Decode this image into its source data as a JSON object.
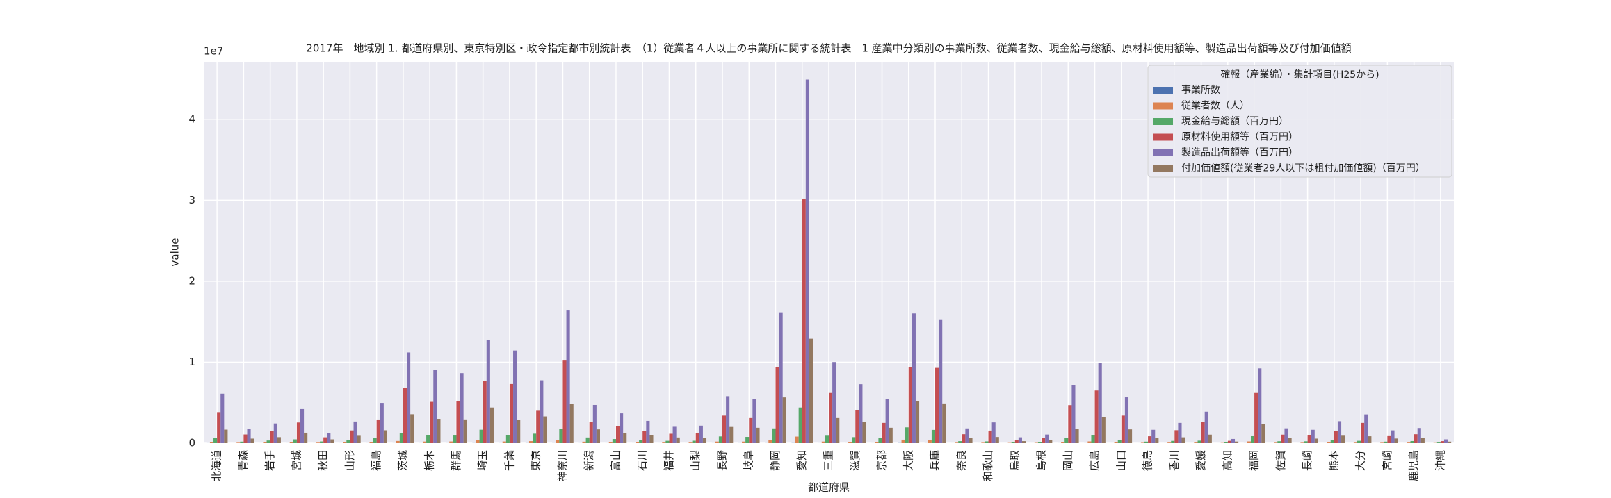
{
  "chart_data": {
    "type": "bar",
    "title": "2017年　地域別 1. 都道府県別、東京特別区・政令指定都市別統計表　（1）従業者４人以上の事業所に関する統計表　1 産業中分類別の事業所数、従業者数、現金給与総額、原材料使用額等、製造品出荷額等及び付加価値額",
    "x_label": "都道府県",
    "y_label": "value",
    "y_offset_label": "1e7",
    "legend_title": "確報（産業編）・集計項目(H25から)",
    "legend_position": "upper right",
    "grid": true,
    "categories": [
      "北海道",
      "青森",
      "岩手",
      "宮城",
      "秋田",
      "山形",
      "福島",
      "茨城",
      "栃木",
      "群馬",
      "埼玉",
      "千葉",
      "東京",
      "神奈川",
      "新潟",
      "富山",
      "石川",
      "福井",
      "山梨",
      "長野",
      "岐阜",
      "静岡",
      "愛知",
      "三重",
      "滋賀",
      "京都",
      "大阪",
      "兵庫",
      "奈良",
      "和歌山",
      "鳥取",
      "島根",
      "岡山",
      "広島",
      "山口",
      "徳島",
      "香川",
      "愛媛",
      "高知",
      "福岡",
      "佐賀",
      "長崎",
      "熊本",
      "大分",
      "宮崎",
      "鹿児島",
      "沖縄"
    ],
    "series": [
      {
        "name": "事業所数",
        "color": "#4c72b0",
        "values": [
          5300,
          1400,
          2100,
          2700,
          1800,
          2600,
          3600,
          5200,
          4200,
          4900,
          11100,
          4800,
          10800,
          7800,
          5200,
          2600,
          2700,
          2000,
          1700,
          5000,
          5600,
          8800,
          15700,
          3200,
          2600,
          4200,
          15700,
          7200,
          1800,
          1700,
          800,
          1100,
          3200,
          4800,
          1800,
          1100,
          1900,
          2000,
          1000,
          5000,
          1400,
          1500,
          2000,
          1400,
          1400,
          2100,
          1100
        ]
      },
      {
        "name": "従業者数（人）",
        "color": "#dd8452",
        "values": [
          168000,
          56000,
          88000,
          116000,
          62000,
          101000,
          158000,
          268000,
          200000,
          210000,
          393000,
          208000,
          253000,
          357000,
          185000,
          123000,
          97000,
          73000,
          71000,
          198000,
          196000,
          407000,
          810000,
          198000,
          160000,
          141000,
          433000,
          360000,
          60000,
          54000,
          31000,
          41000,
          147000,
          216000,
          93000,
          46000,
          70000,
          77000,
          25000,
          216000,
          61000,
          56000,
          92000,
          67000,
          55000,
          72000,
          24000
        ]
      },
      {
        "name": "現金給与総額（百万円）",
        "color": "#55a868",
        "values": [
          640000,
          190000,
          330000,
          470000,
          210000,
          380000,
          640000,
          1260000,
          960000,
          940000,
          1660000,
          960000,
          1170000,
          1720000,
          700000,
          510000,
          380000,
          290000,
          300000,
          830000,
          770000,
          1820000,
          4400000,
          920000,
          740000,
          610000,
          1950000,
          1640000,
          250000,
          220000,
          110000,
          150000,
          620000,
          960000,
          420000,
          190000,
          280000,
          310000,
          90000,
          860000,
          240000,
          230000,
          360000,
          290000,
          190000,
          260000,
          80000
        ]
      },
      {
        "name": "原材料使用額等（百万円）",
        "color": "#c44e52",
        "values": [
          3830000,
          1070000,
          1500000,
          2550000,
          720000,
          1570000,
          2920000,
          6800000,
          5100000,
          5200000,
          7700000,
          7300000,
          4000000,
          10200000,
          2600000,
          2100000,
          1500000,
          1160000,
          1280000,
          3400000,
          3100000,
          9400000,
          30200000,
          6200000,
          4100000,
          2500000,
          9400000,
          9300000,
          1100000,
          1550000,
          400000,
          620000,
          4700000,
          6500000,
          3400000,
          850000,
          1600000,
          2600000,
          290000,
          6200000,
          1050000,
          950000,
          1500000,
          2500000,
          870000,
          1100000,
          250000
        ]
      },
      {
        "name": "製造品出荷額等（百万円）",
        "color": "#8172b3",
        "values": [
          6110000,
          1750000,
          2430000,
          4210000,
          1280000,
          2670000,
          4970000,
          11200000,
          9030000,
          8650000,
          12710000,
          11440000,
          7760000,
          16380000,
          4720000,
          3680000,
          2750000,
          2020000,
          2160000,
          5800000,
          5430000,
          16160000,
          44910000,
          10020000,
          7280000,
          5430000,
          16020000,
          15210000,
          1820000,
          2560000,
          720000,
          1060000,
          7130000,
          9930000,
          5660000,
          1650000,
          2500000,
          3880000,
          520000,
          9240000,
          1830000,
          1650000,
          2710000,
          3550000,
          1580000,
          1870000,
          470000
        ]
      },
      {
        "name": "付加価値額(従業者29人以下は粗付加価値額)（百万円）",
        "color": "#937860",
        "values": [
          1670000,
          560000,
          740000,
          1290000,
          470000,
          910000,
          1590000,
          3570000,
          3000000,
          2930000,
          4400000,
          2900000,
          3300000,
          4870000,
          1700000,
          1230000,
          990000,
          700000,
          670000,
          2000000,
          1900000,
          5650000,
          12900000,
          3100000,
          2650000,
          1900000,
          5150000,
          4900000,
          620000,
          760000,
          250000,
          390000,
          1800000,
          3200000,
          1700000,
          680000,
          720000,
          1050000,
          200000,
          2400000,
          620000,
          560000,
          920000,
          850000,
          570000,
          620000,
          190000
        ]
      }
    ],
    "ylim": [
      0,
      47100000
    ],
    "yticks": [
      0,
      {
        "value": 10000000,
        "label": "1"
      },
      {
        "value": 20000000,
        "label": "2"
      },
      {
        "value": 30000000,
        "label": "3"
      },
      {
        "value": 40000000,
        "label": "4"
      }
    ]
  }
}
